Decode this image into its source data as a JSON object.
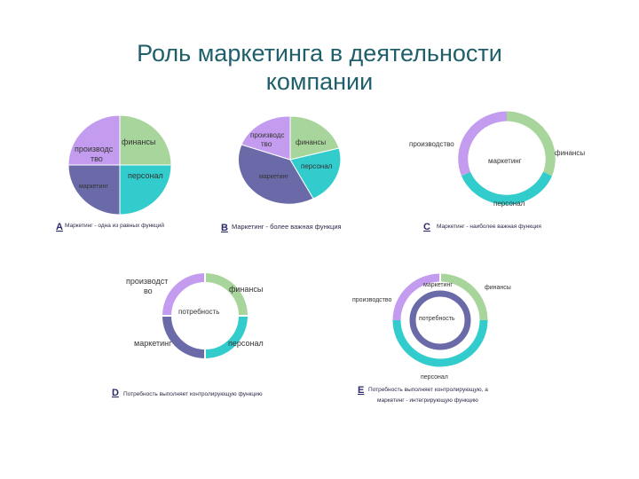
{
  "title": {
    "line1": "Роль маркетинга в деятельности",
    "line2": "компании"
  },
  "colors": {
    "finance": "#a7d59b",
    "personnel": "#33cccc",
    "marketing": "#6a6aa8",
    "production": "#c39cf0",
    "title": "#1f5f6b"
  },
  "diagrams": {
    "a": {
      "letter": "A",
      "caption": "Маркетинг - одна из равных функций",
      "labels": {
        "finance": "финансы",
        "personnel": "персонал",
        "marketing": "маркетинг",
        "production_1": "производс",
        "production_2": "тво"
      }
    },
    "b": {
      "letter": "B",
      "caption": "Маркетинг - более важная функция",
      "labels": {
        "finance": "финансы",
        "personnel": "персонал",
        "marketing": "маркетинг",
        "production_1": "производс",
        "production_2": "тво"
      }
    },
    "c": {
      "letter": "C",
      "caption": "Маркетинг - наиболее важная функция",
      "labels": {
        "production": "производство",
        "finance": "финансы",
        "marketing": "маркетинг",
        "personnel": "персонал"
      }
    },
    "d": {
      "letter": "D",
      "caption": "Потребность выполняет контролирующую функцию",
      "labels": {
        "production_1": "производст",
        "production_2": "во",
        "finance": "финансы",
        "need": "потребность",
        "marketing": "маркетинг",
        "personnel": "персонал"
      }
    },
    "e": {
      "letter": "E",
      "caption_1": "Потребность выполняет контролирующую, а",
      "caption_2": "маркетинг - интегрирующую функцию",
      "labels": {
        "marketing": "маркетинг",
        "finance": "финансы",
        "production": "производство",
        "need": "потребность",
        "personnel": "персонал"
      }
    }
  }
}
